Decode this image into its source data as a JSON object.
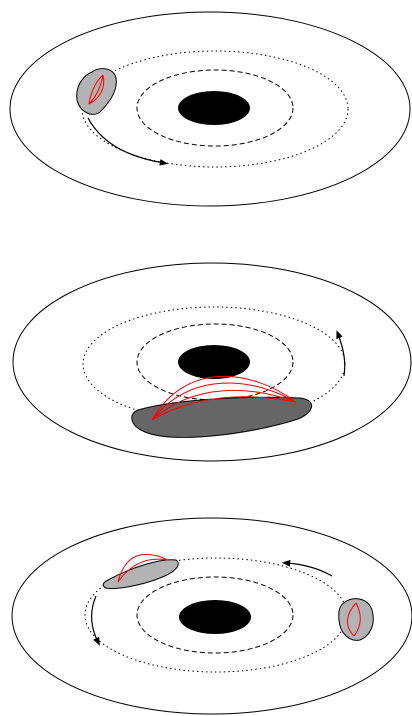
{
  "colors": {
    "background": "#ffffff",
    "outline": "#000000",
    "black_hole": "#000000",
    "blob_light": "#b3b3b3",
    "blob_dark": "#666666",
    "field_lines": "#ff0000"
  },
  "panels": [
    {
      "id": "top",
      "blob_shade": "light",
      "orbit_direction": "counterclockwise"
    },
    {
      "id": "middle",
      "blob_shade": "dark",
      "orbit_direction": "counterclockwise"
    },
    {
      "id": "bottom",
      "blob_shade": "light",
      "orbit_direction": "counterclockwise",
      "blob_count": 2
    }
  ]
}
